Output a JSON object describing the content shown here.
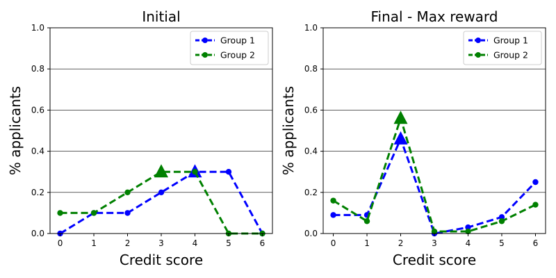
{
  "chart_data": [
    {
      "type": "line",
      "title": "Initial",
      "xlabel": "Credit score",
      "ylabel": "% applicants",
      "xlim": [
        -0.3,
        6.3
      ],
      "ylim": [
        0,
        1.0
      ],
      "x_ticks": [
        0,
        1,
        2,
        3,
        4,
        5,
        6
      ],
      "y_ticks": [
        0.0,
        0.2,
        0.4,
        0.6,
        0.8,
        1.0
      ],
      "y_tick_labels": [
        "0.0",
        "0.2",
        "0.4",
        "0.6",
        "0.8",
        "1.0"
      ],
      "grid": "horizontal",
      "legend": "top-right",
      "x": [
        0,
        1,
        2,
        3,
        4,
        5,
        6
      ],
      "series": [
        {
          "name": "Group 1",
          "color": "#0000ff",
          "values": [
            0.0,
            0.1,
            0.1,
            0.2,
            0.3,
            0.3,
            0.0
          ],
          "mean_x": 4,
          "mean_y": 0.3
        },
        {
          "name": "Group 2",
          "color": "#008000",
          "values": [
            0.1,
            0.1,
            0.2,
            0.3,
            0.3,
            0.0,
            0.0
          ],
          "mean_x": 3,
          "mean_y": 0.3
        }
      ]
    },
    {
      "type": "line",
      "title": "Final - Max reward",
      "xlabel": "Credit score",
      "ylabel": "% applicants",
      "xlim": [
        -0.3,
        6.3
      ],
      "ylim": [
        0,
        1.0
      ],
      "x_ticks": [
        0,
        1,
        2,
        3,
        4,
        5,
        6
      ],
      "y_ticks": [
        0.0,
        0.2,
        0.4,
        0.6,
        0.8,
        1.0
      ],
      "y_tick_labels": [
        "0.0",
        "0.2",
        "0.4",
        "0.6",
        "0.8",
        "1.0"
      ],
      "grid": "horizontal",
      "legend": "top-right",
      "x": [
        0,
        1,
        2,
        3,
        4,
        5,
        6
      ],
      "series": [
        {
          "name": "Group 1",
          "color": "#0000ff",
          "values": [
            0.09,
            0.09,
            0.46,
            0.0,
            0.03,
            0.08,
            0.25
          ],
          "mean_x": 2,
          "mean_y": 0.46
        },
        {
          "name": "Group 2",
          "color": "#008000",
          "values": [
            0.16,
            0.06,
            0.56,
            0.01,
            0.01,
            0.06,
            0.14
          ],
          "mean_x": 2,
          "mean_y": 0.56
        }
      ]
    }
  ]
}
